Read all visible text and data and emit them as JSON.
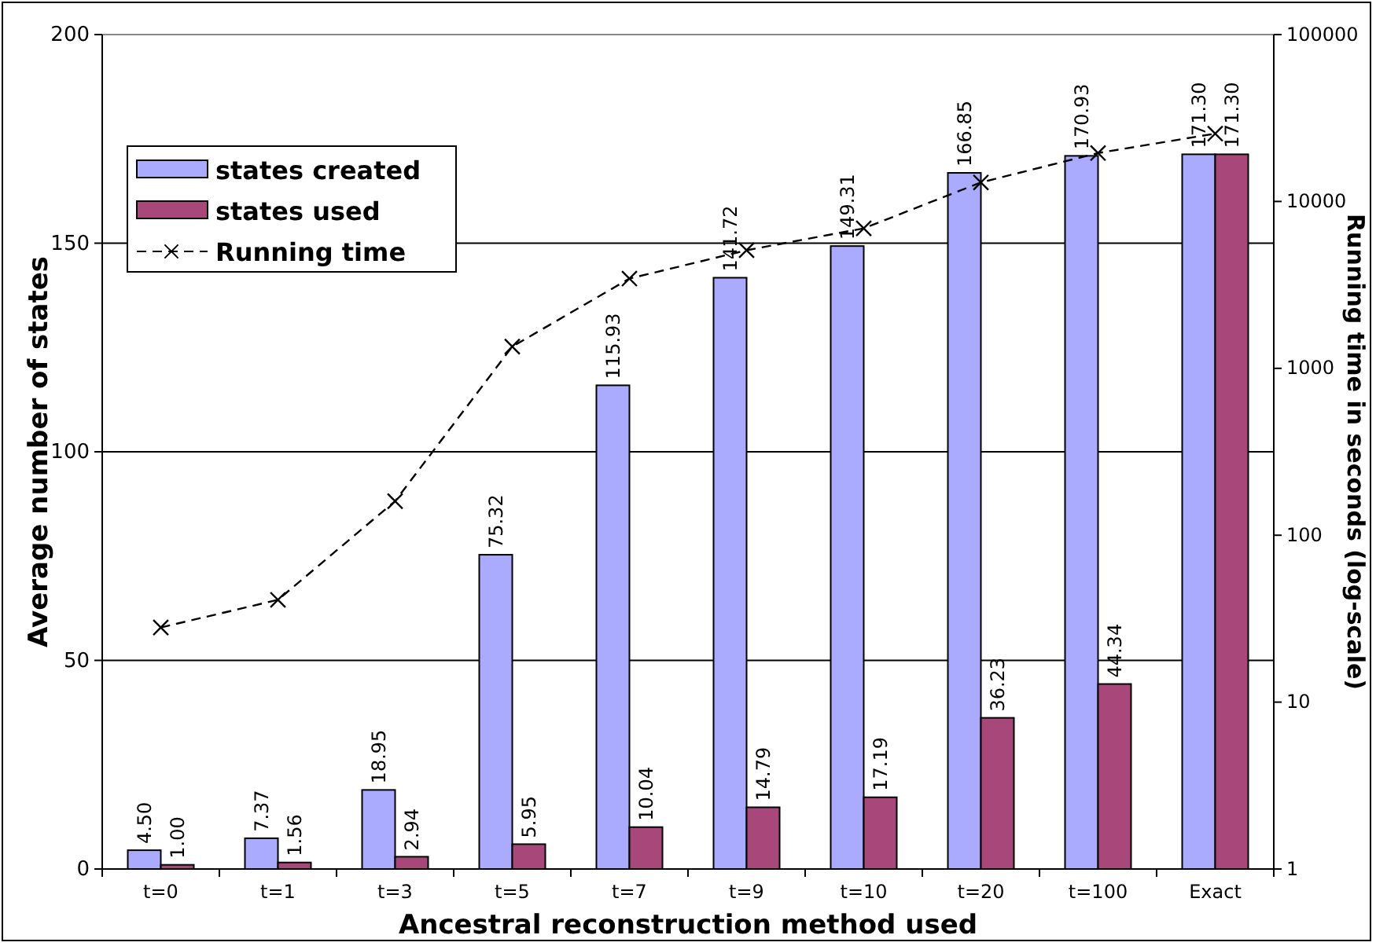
{
  "chart_data": {
    "type": "bar",
    "xlabel": "Ancestral reconstruction method used",
    "ylabel": "Average number of states",
    "y2label": "Running time in seconds (log-scale)",
    "categories": [
      "t=0",
      "t=1",
      "t=3",
      "t=5",
      "t=7",
      "t=9",
      "t=10",
      "t=20",
      "t=100",
      "Exact"
    ],
    "series": [
      {
        "name": "states created",
        "color": "#aaaaff",
        "values": [
          4.5,
          7.37,
          18.95,
          75.32,
          115.93,
          141.72,
          149.31,
          166.85,
          170.93,
          171.3
        ],
        "value_labels": [
          "4.50",
          "7.37",
          "18.95",
          "75.32",
          "115.93",
          "141.72",
          "149.31",
          "166.85",
          "170.93",
          "171.30"
        ]
      },
      {
        "name": "states used",
        "color": "#a8487a",
        "values": [
          1.0,
          1.56,
          2.94,
          5.95,
          10.04,
          14.79,
          17.19,
          36.23,
          44.34,
          171.3
        ],
        "value_labels": [
          "1.00",
          "1.56",
          "2.94",
          "5.95",
          "10.04",
          "14.79",
          "17.19",
          "36.23",
          "44.34",
          "171.30"
        ]
      },
      {
        "name": "Running time",
        "type": "line",
        "axis": "y2",
        "color": "#000000",
        "marker": "cross",
        "line_style": "dashed",
        "values": [
          28,
          41,
          160,
          1350,
          3450,
          5100,
          6900,
          13000,
          19500,
          25500
        ]
      }
    ],
    "ylim": [
      0,
      200
    ],
    "yticks": [
      0,
      50,
      100,
      150,
      200
    ],
    "y2lim": [
      1,
      100000
    ],
    "y2ticks": [
      1,
      10,
      100,
      1000,
      10000,
      100000
    ],
    "log": "y2",
    "grid": "y",
    "legend": "top left"
  }
}
